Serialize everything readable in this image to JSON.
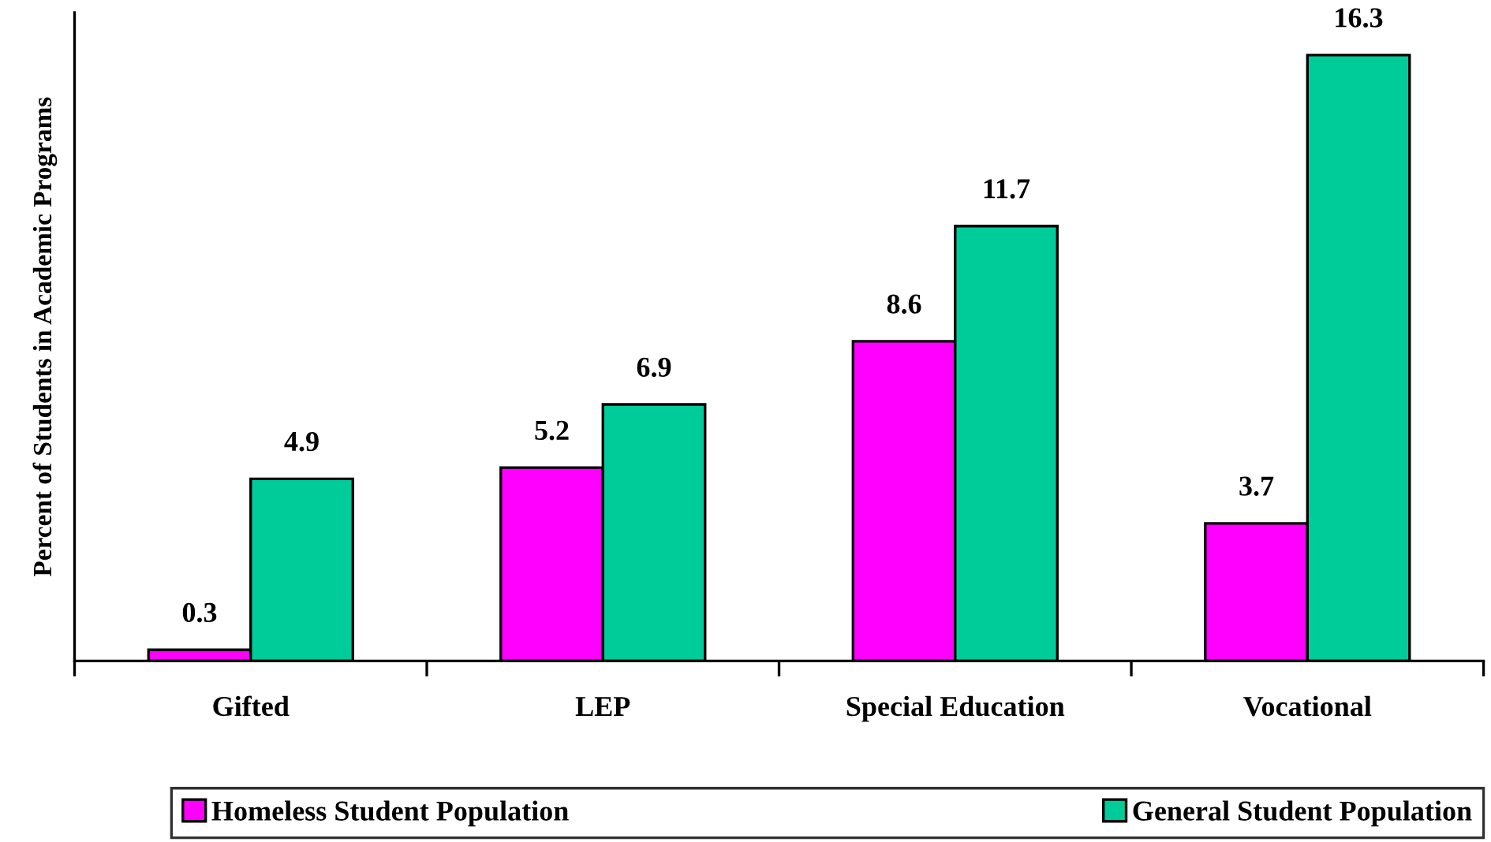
{
  "chart_data": {
    "type": "bar",
    "ylabel": "Percent of Students in Academic Programs",
    "categories": [
      "Gifted",
      "LEP",
      "Special Education",
      "Vocational"
    ],
    "series": [
      {
        "name": "Homeless Student Population",
        "color": "#ff00ff",
        "values": [
          0.3,
          5.2,
          8.6,
          3.7
        ]
      },
      {
        "name": "General Student Population",
        "color": "#00cc99",
        "values": [
          4.9,
          6.9,
          11.7,
          16.3
        ]
      }
    ],
    "data_labels": true,
    "legend": "bottom",
    "grid": false,
    "tick_labels": "x"
  }
}
